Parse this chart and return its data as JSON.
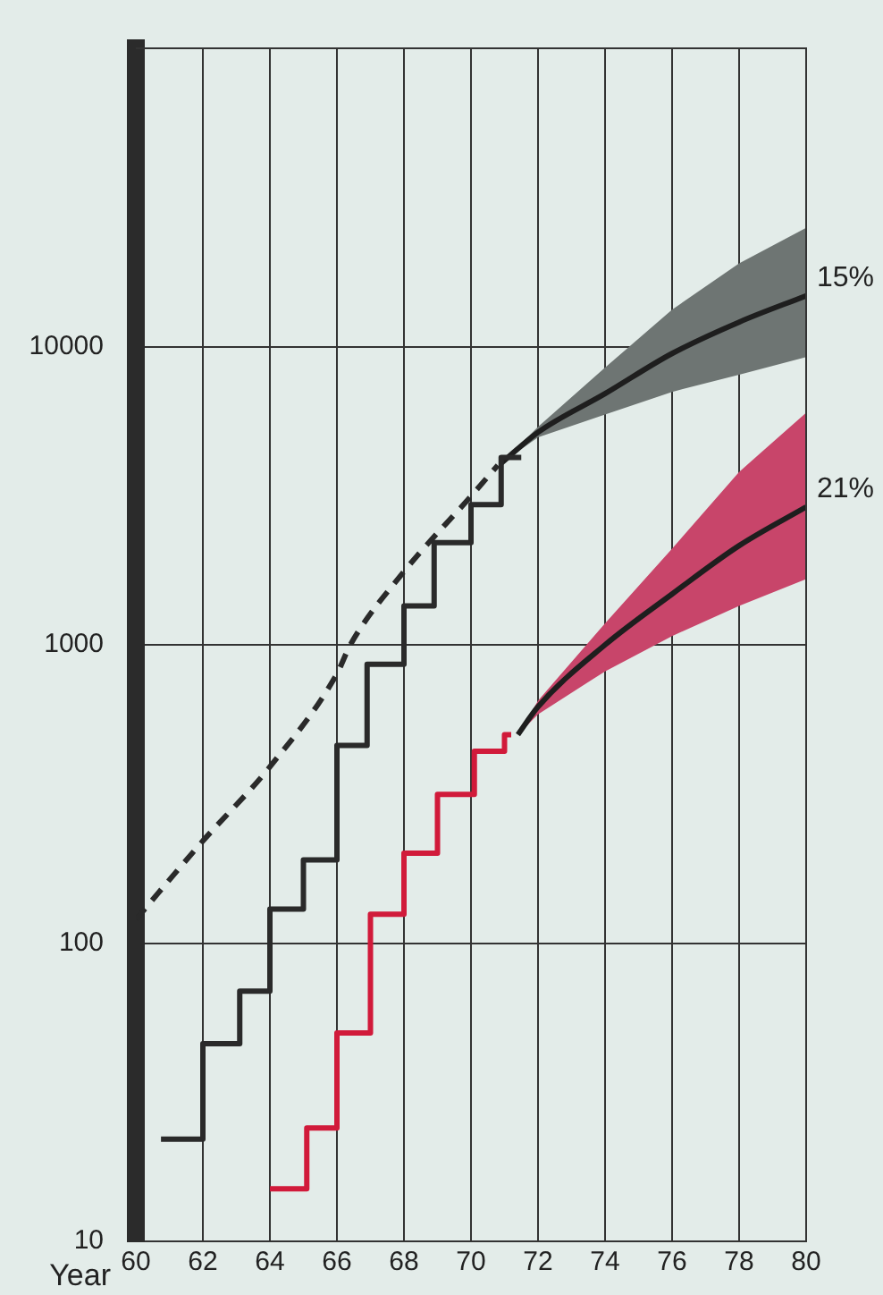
{
  "chart_data": {
    "type": "line",
    "xlabel": "Year",
    "log": "y",
    "grid": true,
    "legend": false,
    "xlim": [
      60,
      80
    ],
    "xticks": [
      60,
      62,
      64,
      66,
      68,
      70,
      72,
      74,
      76,
      78,
      80
    ],
    "ylim": [
      10,
      100000
    ],
    "yticks": [
      10,
      100,
      1000,
      10000
    ],
    "series": [
      {
        "type": "step",
        "color": "#2a2a2a",
        "x": [
          60.75,
          62,
          63.1,
          64,
          65,
          66,
          66.9,
          68,
          68.9,
          70,
          70.9,
          71.5
        ],
        "values": [
          22,
          46,
          69,
          130,
          190,
          460,
          860,
          1350,
          2200,
          2950,
          4250,
          4250
        ]
      },
      {
        "type": "step",
        "color": "#d11a3a",
        "x": [
          64,
          65.1,
          66,
          67,
          68,
          69,
          70.1,
          71,
          71.2
        ],
        "values": [
          15,
          24,
          50,
          125,
          200,
          315,
          440,
          500,
          500
        ]
      },
      {
        "line_style": "dashed",
        "color": "#2a2a2a",
        "x": [
          60,
          62,
          64,
          66,
          66.4,
          68,
          70,
          70.8
        ],
        "values": [
          120,
          220,
          390,
          800,
          1000,
          1760,
          3150,
          4000
        ]
      },
      {
        "name": "15%",
        "color": "#1e1e1e",
        "x": [
          70.9,
          72,
          74,
          76,
          78,
          80
        ],
        "values": [
          4060,
          5160,
          6950,
          9480,
          12080,
          14800
        ],
        "lower": [
          4060,
          4960,
          5920,
          7050,
          8050,
          9220
        ],
        "upper": [
          4060,
          5380,
          8500,
          13300,
          19000,
          25000
        ]
      },
      {
        "name": "21%",
        "color": "#1e1e1e",
        "x": [
          71.4,
          72,
          74,
          76,
          78,
          80
        ],
        "values": [
          500,
          620,
          1000,
          1480,
          2150,
          2900
        ],
        "lower": [
          500,
          585,
          815,
          1070,
          1350,
          1660
        ],
        "upper": [
          500,
          650,
          1180,
          2100,
          3800,
          6000
        ]
      }
    ]
  }
}
